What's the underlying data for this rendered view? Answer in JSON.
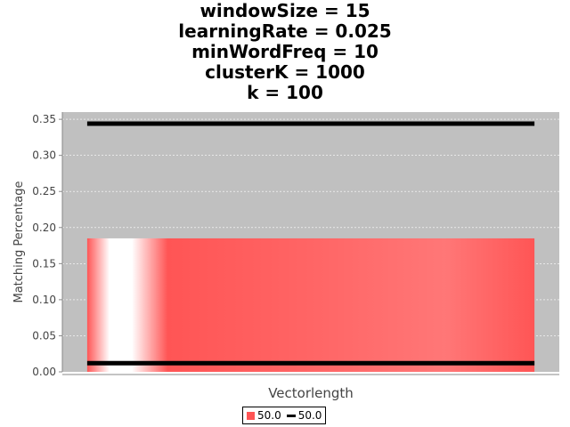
{
  "title_lines": [
    "windowSize = 15",
    "learningRate = 0.025",
    "minWordFreq = 10",
    "clusterK = 1000",
    "k = 100"
  ],
  "colors": {
    "plot_background": "#c0c0c0",
    "bar": "#ff5555",
    "line": "#000000",
    "grid": "#ffffff"
  },
  "chart_data": {
    "type": "bar",
    "categories": [
      ""
    ],
    "xlabel": "Vectorlength",
    "ylabel": "Matching Percentage",
    "ylim": [
      0,
      0.36
    ],
    "yticks": [
      "0.00",
      "0.05",
      "0.10",
      "0.15",
      "0.20",
      "0.25",
      "0.30",
      "0.35"
    ],
    "grid": true,
    "bar_series": [
      {
        "name": "50.0",
        "values": [
          0.185
        ]
      }
    ],
    "line_series": [
      {
        "name": "50.0",
        "values": [
          0.012,
          0.344
        ]
      }
    ],
    "legend": {
      "placement": "bottom",
      "entries": [
        {
          "label": "50.0",
          "kind": "bar"
        },
        {
          "label": "50.0",
          "kind": "line"
        }
      ]
    }
  }
}
